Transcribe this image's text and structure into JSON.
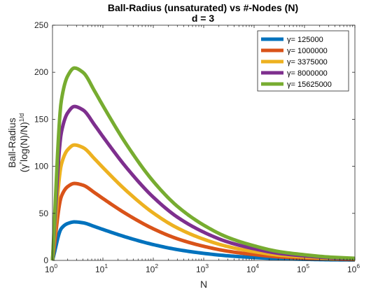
{
  "chart_data": {
    "type": "line",
    "title": "Ball-Radius (unsaturated) vs #-Nodes (N)",
    "subtitle": "d = 3",
    "xlabel": "N",
    "ylabel_line1": "Ball-Radius",
    "ylabel_line2_parts": [
      "(γ",
      "*",
      "log(N)/N)",
      "1/d"
    ],
    "x_scale": "log",
    "xlim": [
      1,
      1000000
    ],
    "ylim": [
      0,
      250
    ],
    "x_tick_labels": [
      {
        "base": "10",
        "exp": "0"
      },
      {
        "base": "10",
        "exp": "1"
      },
      {
        "base": "10",
        "exp": "2"
      },
      {
        "base": "10",
        "exp": "3"
      },
      {
        "base": "10",
        "exp": "4"
      },
      {
        "base": "10",
        "exp": "5"
      },
      {
        "base": "10",
        "exp": "6"
      }
    ],
    "y_tick_labels": [
      "0",
      "50",
      "100",
      "150",
      "200",
      "250"
    ],
    "grid": false,
    "legend_position": "top-right",
    "legend_prefix": "γ=",
    "x": [
      1,
      1.5,
      2,
      2.72,
      4,
      7,
      10,
      30,
      100,
      300,
      1000,
      3000,
      10000,
      30000,
      100000,
      300000,
      1000000
    ],
    "series": [
      {
        "name": "125000",
        "color": "#0072BD",
        "values": [
          0,
          34.0,
          39.2,
          40.9,
          40.0,
          35.8,
          32.9,
          24.5,
          16.8,
          11.5,
          7.5,
          4.9,
          3.1,
          1.9,
          1.2,
          0.72,
          0.44
        ]
      },
      {
        "name": "1000000",
        "color": "#D95319",
        "values": [
          0,
          68.0,
          78.4,
          81.8,
          80.0,
          71.6,
          65.8,
          49.0,
          33.6,
          23.0,
          15.0,
          9.8,
          6.2,
          3.8,
          2.4,
          1.44,
          0.88
        ]
      },
      {
        "name": "3375000",
        "color": "#EDB120",
        "values": [
          0,
          102.0,
          117.6,
          122.7,
          120.0,
          107.4,
          98.7,
          73.5,
          50.4,
          34.5,
          22.5,
          14.7,
          9.3,
          5.7,
          3.6,
          2.16,
          1.32
        ]
      },
      {
        "name": "8000000",
        "color": "#7E2F8E",
        "values": [
          0,
          136.0,
          156.8,
          163.6,
          160.0,
          143.2,
          131.6,
          98.0,
          67.2,
          46.0,
          30.0,
          19.6,
          12.4,
          7.6,
          4.8,
          2.88,
          1.76
        ]
      },
      {
        "name": "15625000",
        "color": "#77AC30",
        "values": [
          0,
          170.0,
          196.0,
          204.5,
          200.0,
          179.0,
          164.5,
          122.5,
          84.0,
          57.5,
          37.5,
          24.5,
          15.5,
          9.5,
          6.0,
          3.6,
          2.2
        ]
      }
    ]
  }
}
